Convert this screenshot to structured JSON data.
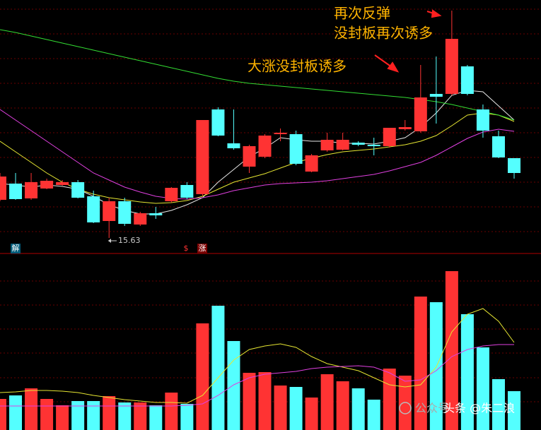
{
  "chart_data": [
    {
      "type": "candlestick",
      "up_color": "#ff3333",
      "down_color": "#54ffff",
      "ylim": [
        15.27,
        22.37
      ],
      "open": [
        16.71,
        17.17,
        16.75,
        17.03,
        17.13,
        17.21,
        16.81,
        16.11,
        16.67,
        16.01,
        16.33,
        16.67,
        17.13,
        16.87,
        19.27,
        18.31,
        17.65,
        17.93,
        18.57,
        18.57,
        17.51,
        18.11,
        18.13,
        18.33,
        18.27,
        18.23,
        18.71,
        18.65,
        19.71,
        19.71,
        20.49,
        19.27,
        18.51,
        17.89
      ],
      "high": [
        17.47,
        17.47,
        17.47,
        17.31,
        17.27,
        17.27,
        16.97,
        16.77,
        16.77,
        16.37,
        16.51,
        17.07,
        17.21,
        18.97,
        19.33,
        19.27,
        18.27,
        18.57,
        18.73,
        18.67,
        18.01,
        18.61,
        18.61,
        18.37,
        18.47,
        18.75,
        18.97,
        20.53,
        20.77,
        22.07,
        20.53,
        19.41,
        18.67,
        17.89
      ],
      "low": [
        16.67,
        16.71,
        16.71,
        17.01,
        17.11,
        16.75,
        16.05,
        15.63,
        15.97,
        15.97,
        16.17,
        16.63,
        16.73,
        16.83,
        18.51,
        18.13,
        17.47,
        17.89,
        18.37,
        17.69,
        17.49,
        18.07,
        18.11,
        18.23,
        17.97,
        18.19,
        18.67,
        18.61,
        18.87,
        19.67,
        19.67,
        18.47,
        17.89,
        17.31
      ],
      "close": [
        17.37,
        16.73,
        17.21,
        17.25,
        17.21,
        16.77,
        16.07,
        16.67,
        16.03,
        16.33,
        16.27,
        17.05,
        16.77,
        18.97,
        18.53,
        18.17,
        18.23,
        18.53,
        18.61,
        17.73,
        17.97,
        18.41,
        18.41,
        18.27,
        18.23,
        18.75,
        18.77,
        19.61,
        19.63,
        21.27,
        19.71,
        18.67,
        17.91,
        17.47
      ],
      "series": [
        {
          "color": "#e8e8e8",
          "values": [
            17.17,
            17.13,
            17.07,
            17.13,
            17.09,
            17.01,
            16.81,
            16.57,
            16.41,
            16.31,
            16.31,
            16.41,
            16.57,
            16.77,
            17.21,
            17.57,
            17.93,
            18.17,
            18.47,
            18.41,
            18.37,
            18.37,
            18.31,
            18.31,
            18.29,
            18.37,
            18.47,
            18.77,
            19.17,
            19.67,
            19.81,
            19.77,
            19.37,
            18.97
          ]
        },
        {
          "color": "#e6e632",
          "values": [
            18.37,
            18.07,
            17.77,
            17.47,
            17.21,
            17.01,
            16.87,
            16.77,
            16.71,
            16.65,
            16.61,
            16.63,
            16.69,
            16.81,
            17.01,
            17.21,
            17.33,
            17.45,
            17.61,
            17.77,
            17.89,
            17.99,
            18.07,
            18.11,
            18.15,
            18.21,
            18.27,
            18.37,
            18.53,
            18.81,
            19.11,
            19.17,
            19.11,
            18.93
          ]
        },
        {
          "color": "#e040e0",
          "values": [
            19.27,
            18.97,
            18.67,
            18.37,
            18.07,
            17.77,
            17.47,
            17.27,
            17.07,
            16.93,
            16.81,
            16.75,
            16.73,
            16.77,
            16.85,
            16.97,
            17.05,
            17.13,
            17.17,
            17.19,
            17.21,
            17.25,
            17.31,
            17.37,
            17.43,
            17.53,
            17.65,
            17.77,
            17.97,
            18.21,
            18.45,
            18.63,
            18.71,
            18.65
          ]
        },
        {
          "color": "#33dd33",
          "values": [
            21.53,
            21.45,
            21.35,
            21.25,
            21.15,
            21.05,
            20.95,
            20.85,
            20.75,
            20.65,
            20.55,
            20.45,
            20.35,
            20.25,
            20.15,
            20.07,
            20.01,
            19.97,
            19.93,
            19.89,
            19.85,
            19.81,
            19.77,
            19.73,
            19.69,
            19.65,
            19.61,
            19.55,
            19.49,
            19.41,
            19.31,
            19.21,
            19.11,
            18.97
          ]
        }
      ],
      "annotations": [
        "再次反弹",
        "没封板再次诱多",
        "大涨没封板诱多"
      ],
      "markers": [
        "解",
        "$",
        "涨"
      ]
    },
    {
      "type": "bar",
      "ylim": [
        0,
        250
      ],
      "values": [
        44,
        49,
        59,
        44,
        35,
        41,
        41,
        48,
        39,
        39,
        35,
        53,
        37,
        151,
        176,
        126,
        81,
        82,
        63,
        61,
        46,
        79,
        69,
        59,
        43,
        87,
        77,
        189,
        181,
        225,
        164,
        117,
        72,
        55
      ],
      "series": [
        {
          "color": "#e6e632",
          "values": [
            53,
            54,
            56,
            56,
            55,
            53,
            49,
            46,
            43,
            41,
            39,
            39,
            38,
            49,
            74,
            99,
            114,
            119,
            122,
            117,
            104,
            94,
            89,
            84,
            74,
            64,
            61,
            64,
            89,
            139,
            164,
            172,
            154,
            124
          ]
        },
        {
          "color": "#e040e0",
          "values": [
            34,
            34,
            34,
            34,
            34,
            34,
            34,
            34,
            34,
            34,
            34,
            34,
            35,
            37,
            49,
            64,
            74,
            79,
            81,
            83,
            87,
            89,
            90,
            91,
            89,
            81,
            69,
            71,
            84,
            104,
            114,
            119,
            121,
            121
          ]
        }
      ]
    }
  ],
  "watermark": {
    "account": "公众号",
    "text": "头条 @朱二浪"
  }
}
